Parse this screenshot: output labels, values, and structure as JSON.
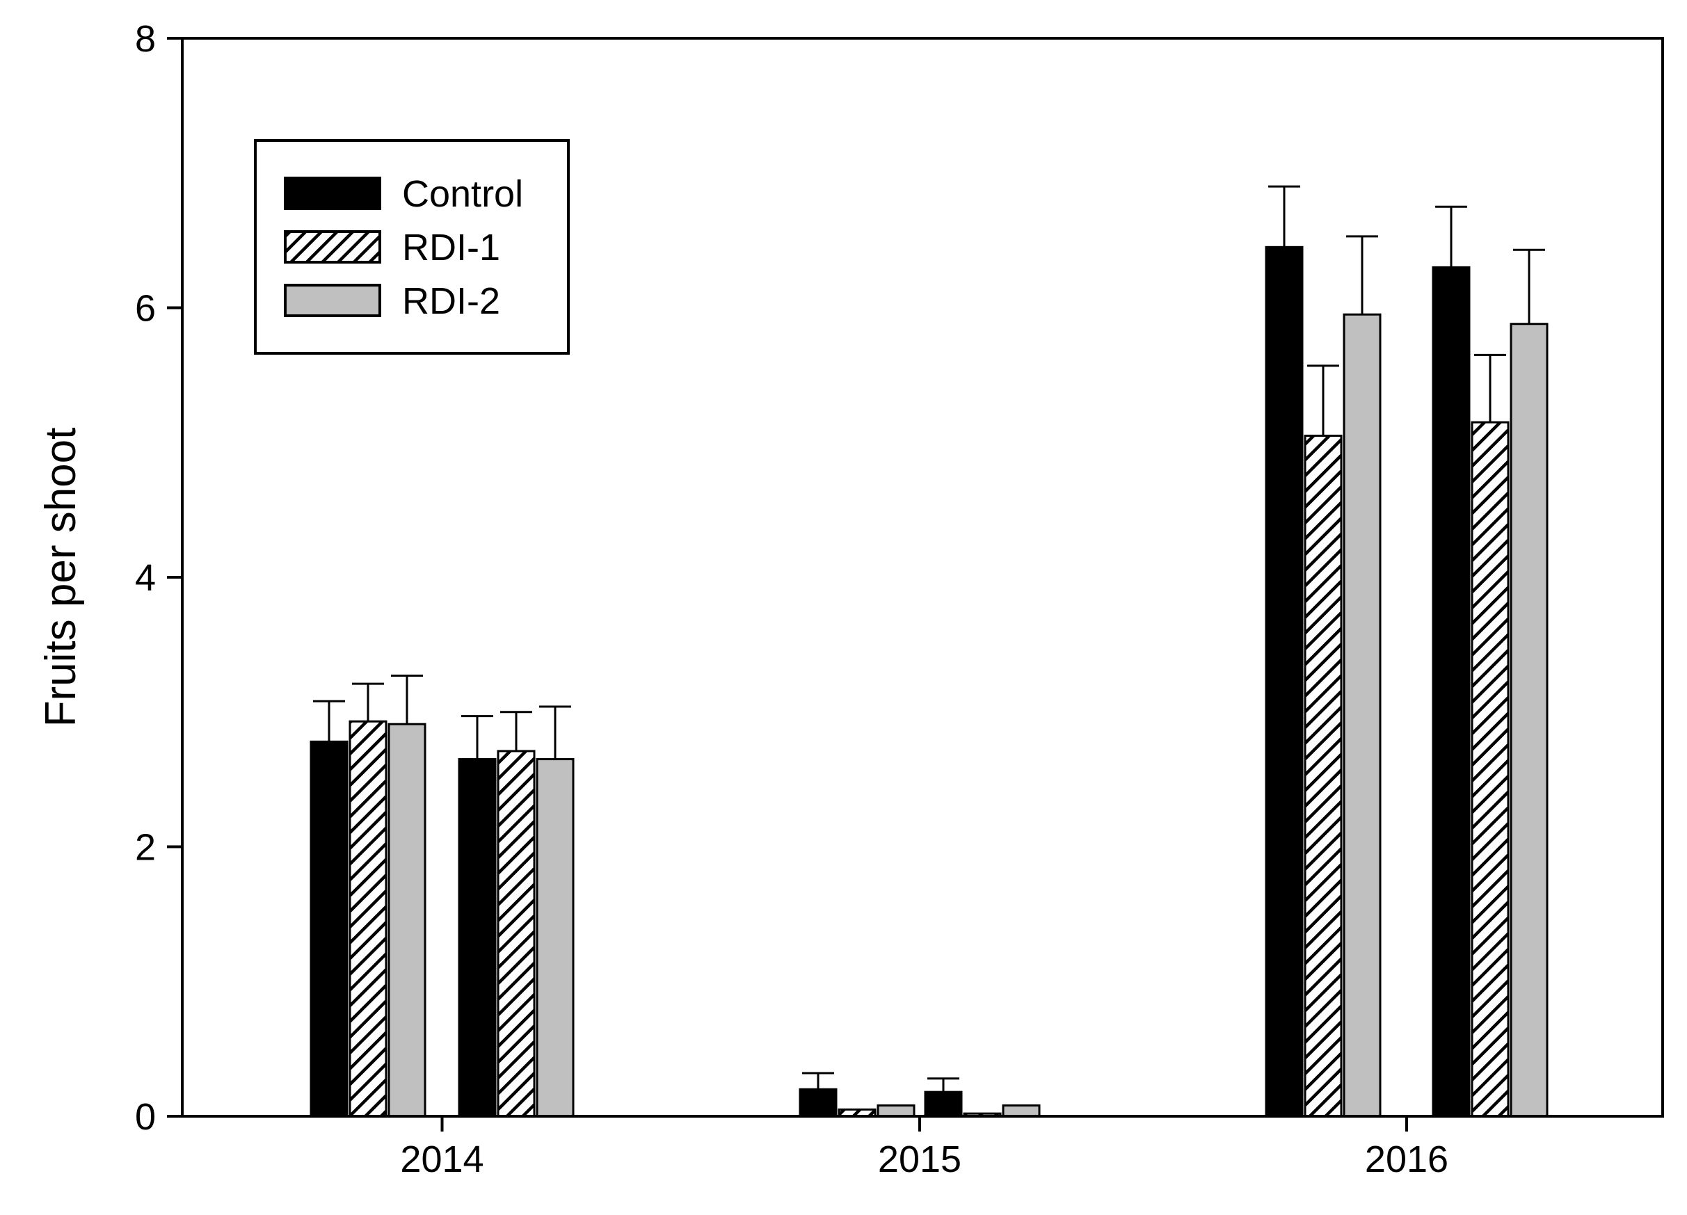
{
  "chart_data": {
    "type": "bar",
    "title": "",
    "xlabel": "",
    "ylabel": "Fruits per shoot",
    "ylim": [
      0,
      8
    ],
    "yticks": [
      0,
      2,
      4,
      6,
      8
    ],
    "grid": false,
    "legend_position": "top-left",
    "categories": [
      "2014",
      "2015",
      "2016"
    ],
    "groups_per_category": 2,
    "series": [
      {
        "name": "Control",
        "fill": "solid",
        "color": "#000000",
        "values": [
          [
            2.78,
            2.65
          ],
          [
            0.2,
            0.18
          ],
          [
            6.45,
            6.3
          ]
        ],
        "errors": [
          [
            0.3,
            0.32
          ],
          [
            0.12,
            0.1
          ],
          [
            0.45,
            0.45
          ]
        ]
      },
      {
        "name": "RDI-1",
        "fill": "hatched",
        "color": "#000000",
        "values": [
          [
            2.93,
            2.71
          ],
          [
            0.05,
            0.02
          ],
          [
            5.05,
            5.15
          ]
        ],
        "errors": [
          [
            0.28,
            0.29
          ],
          [
            0.0,
            0.0
          ],
          [
            0.52,
            0.5
          ]
        ]
      },
      {
        "name": "RDI-2",
        "fill": "solid",
        "color": "#c0c0c0",
        "values": [
          [
            2.91,
            2.65
          ],
          [
            0.08,
            0.08
          ],
          [
            5.95,
            5.88
          ]
        ],
        "errors": [
          [
            0.36,
            0.39
          ],
          [
            0.0,
            0.0
          ],
          [
            0.58,
            0.55
          ]
        ]
      }
    ]
  }
}
